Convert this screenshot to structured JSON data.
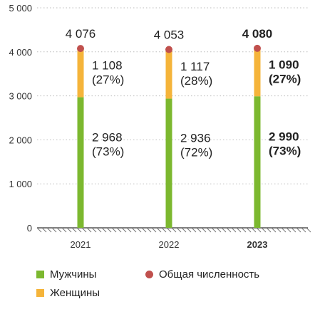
{
  "chart_data": {
    "type": "bar",
    "stacked": true,
    "categories": [
      "2021",
      "2022",
      "2023"
    ],
    "highlight_category": "2023",
    "ylim": [
      0,
      5000
    ],
    "yticks": [
      0,
      1000,
      2000,
      3000,
      4000,
      5000
    ],
    "ytick_labels": [
      "0",
      "1 000",
      "2 000",
      "3 000",
      "4 000",
      "5 000"
    ],
    "grid": "horizontal-dotted",
    "series": [
      {
        "name": "Мужчины",
        "color": "#7cb82f",
        "values": [
          2968,
          2936,
          2990
        ],
        "labels": [
          "2 968",
          "2 936",
          "2 990"
        ],
        "pct_labels": [
          "(73%)",
          "(72%)",
          "(73%)"
        ]
      },
      {
        "name": "Женщины",
        "color": "#f5b43a",
        "values": [
          1108,
          1117,
          1090
        ],
        "labels": [
          "1 108",
          "1 117",
          "1 090"
        ],
        "pct_labels": [
          "(27%)",
          "(28%)",
          "(27%)"
        ]
      }
    ],
    "totals": {
      "name": "Общая численность",
      "color": "#c0504d",
      "values": [
        4076,
        4053,
        4080
      ],
      "labels": [
        "4 076",
        "4 053",
        "4 080"
      ]
    },
    "legend_position": "bottom"
  }
}
